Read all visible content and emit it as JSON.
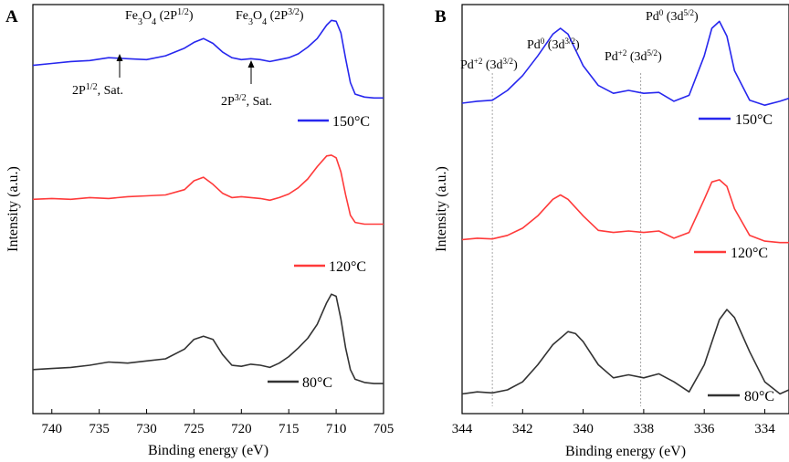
{
  "colors": {
    "series_80": "#333333",
    "series_120": "#ff3a3a",
    "series_150": "#2727ee",
    "refline": "#a6a6a6"
  },
  "chart_data": [
    {
      "panel": "A",
      "type": "line",
      "xlabel": "Binding energy (eV)",
      "ylabel": "Intensity (a.u.)",
      "xlim": [
        742,
        705
      ],
      "xticks": [
        740,
        735,
        730,
        725,
        720,
        715,
        710,
        705
      ],
      "y_units": "arbitrary, stacked (0-100 per series)",
      "annotations": [
        {
          "key": "fe1",
          "main": "Fe",
          "sub": "3",
          "mid": "O",
          "sub2": "4",
          "rest": " (2P",
          "sup": "1/2",
          "end": ")"
        },
        {
          "key": "fe2",
          "main": "Fe",
          "sub": "3",
          "mid": "O",
          "sub2": "4",
          "rest": " (2P",
          "sup": "3/2",
          "end": ")"
        },
        {
          "key": "sat1",
          "main": "2P",
          "sup": "1/2",
          "end": ", Sat.",
          "arrow_x": 733
        },
        {
          "key": "sat2",
          "main": "2P",
          "sup": "3/2",
          "end": ", Sat.",
          "arrow_x": 718.8
        }
      ],
      "series": [
        {
          "name": "150°C",
          "color": "#2727ee",
          "x": [
            742,
            740,
            738,
            736,
            734,
            732,
            730,
            728,
            726,
            725,
            724,
            723,
            722,
            721,
            720,
            719,
            718,
            717,
            716,
            715,
            714,
            713,
            712,
            711,
            710.5,
            710,
            709.5,
            709,
            708.5,
            708,
            707,
            706,
            705
          ],
          "y": [
            48,
            50,
            52,
            53,
            56,
            55,
            54,
            58,
            66,
            72,
            76,
            71,
            62,
            56,
            54,
            55,
            54,
            52,
            54,
            56,
            60,
            67,
            76,
            90,
            95,
            94,
            82,
            55,
            30,
            18,
            15,
            14,
            14
          ]
        },
        {
          "name": "120°C",
          "color": "#ff3a3a",
          "x": [
            742,
            740,
            738,
            736,
            734,
            732,
            730,
            728,
            726,
            725,
            724,
            723,
            722,
            721,
            720,
            719,
            718,
            717,
            716,
            715,
            714,
            713,
            712,
            711,
            710.5,
            710,
            709.5,
            709,
            708.5,
            708,
            707,
            706,
            705
          ],
          "y": [
            45,
            46,
            45,
            47,
            46,
            48,
            49,
            50,
            56,
            66,
            70,
            62,
            52,
            47,
            48,
            47,
            46,
            44,
            47,
            51,
            58,
            68,
            82,
            94,
            95,
            92,
            76,
            50,
            27,
            19,
            17,
            17,
            17
          ]
        },
        {
          "name": "80°C",
          "color": "#333333",
          "x": [
            742,
            740,
            738,
            736,
            734,
            732,
            730,
            728,
            726,
            725,
            724,
            723,
            722,
            721,
            720,
            719,
            718,
            717,
            716,
            715,
            714,
            713,
            712,
            711,
            710.5,
            710,
            709.5,
            709,
            708.5,
            708,
            707,
            706,
            705
          ],
          "y": [
            18,
            19,
            20,
            22,
            25,
            24,
            26,
            28,
            37,
            46,
            49,
            46,
            32,
            22,
            21,
            23,
            22,
            20,
            24,
            30,
            38,
            47,
            60,
            80,
            88,
            86,
            65,
            38,
            18,
            9,
            6,
            5,
            5
          ]
        }
      ]
    },
    {
      "panel": "B",
      "type": "line",
      "xlabel": "Binding energy (eV)",
      "ylabel": "Intensity (a.u.)",
      "xlim": [
        344,
        333.2
      ],
      "xticks": [
        344,
        342,
        340,
        338,
        336,
        334
      ],
      "y_units": "arbitrary, stacked (0-100 per series)",
      "reference_lines": [
        343.0,
        338.1
      ],
      "annotations": [
        {
          "key": "pd2a",
          "main": "Pd",
          "sup": "+2",
          "rest": " (3d",
          "sup2": "3/2",
          "end": ")"
        },
        {
          "key": "pd0a",
          "main": "Pd",
          "sup": "0",
          "rest": " (3d",
          "sup2": "3/2",
          "end": ")"
        },
        {
          "key": "pd2b",
          "main": "Pd",
          "sup": "+2",
          "rest": " (3d",
          "sup2": "5/2",
          "end": ")"
        },
        {
          "key": "pd0b",
          "main": "Pd",
          "sup": "0",
          "rest": " (3d",
          "sup2": "5/2",
          "end": ")"
        }
      ],
      "series": [
        {
          "name": "150°C",
          "color": "#2727ee",
          "x": [
            344,
            343.5,
            343,
            342.5,
            342,
            341.5,
            341,
            340.75,
            340.5,
            340,
            339.5,
            339,
            338.5,
            338,
            337.5,
            337,
            336.5,
            336,
            335.75,
            335.5,
            335.25,
            335,
            334.5,
            334,
            333.5,
            333.2
          ],
          "y": [
            12,
            14,
            15,
            25,
            40,
            60,
            82,
            88,
            82,
            50,
            30,
            22,
            25,
            22,
            23,
            14,
            20,
            60,
            88,
            95,
            80,
            45,
            15,
            10,
            14,
            17
          ]
        },
        {
          "name": "120°C",
          "color": "#ff3a3a",
          "x": [
            344,
            343.5,
            343,
            342.5,
            342,
            341.5,
            341,
            340.75,
            340.5,
            340,
            339.5,
            339,
            338.5,
            338,
            337.5,
            337,
            336.5,
            336,
            335.75,
            335.5,
            335.25,
            335,
            334.5,
            334,
            333.5,
            333.2
          ],
          "y": [
            12,
            14,
            13,
            18,
            28,
            45,
            68,
            74,
            68,
            45,
            25,
            22,
            24,
            22,
            24,
            14,
            22,
            68,
            92,
            95,
            86,
            55,
            18,
            10,
            8,
            8
          ]
        },
        {
          "name": "80°C",
          "color": "#333333",
          "x": [
            344,
            343.5,
            343,
            342.5,
            342,
            341.5,
            341,
            340.5,
            340.25,
            340,
            339.5,
            339,
            338.5,
            338,
            337.5,
            337,
            336.5,
            336,
            335.5,
            335.25,
            335,
            334.5,
            334,
            333.5,
            333.2
          ],
          "y": [
            6,
            8,
            7,
            10,
            18,
            35,
            55,
            68,
            66,
            58,
            35,
            22,
            25,
            22,
            26,
            18,
            8,
            35,
            80,
            90,
            82,
            48,
            18,
            6,
            10
          ]
        }
      ]
    }
  ]
}
